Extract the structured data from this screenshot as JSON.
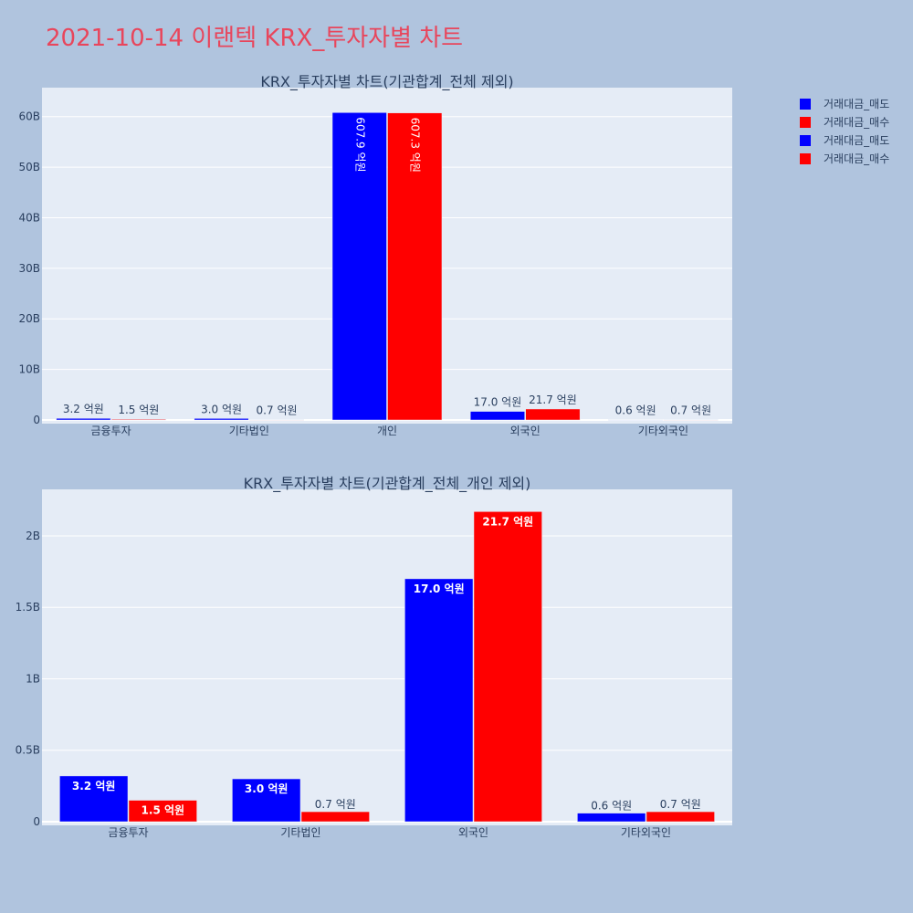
{
  "page": {
    "title": "2021-10-14 이랜텍 KRX_투자자별 차트",
    "background": "#b0c4de",
    "plot_background": "#e5ecf6"
  },
  "legend": {
    "placement": "top-right",
    "entries": [
      {
        "label": "거래대금_매도",
        "color": "#0000ff"
      },
      {
        "label": "거래대금_매수",
        "color": "#ff0000"
      },
      {
        "label": "거래대금_매도",
        "color": "#0000ff"
      },
      {
        "label": "거래대금_매수",
        "color": "#ff0000"
      }
    ]
  },
  "chart_data": [
    {
      "type": "bar",
      "title": "KRX_투자자별 차트(기관합계_전체 제외)",
      "categories": [
        "금융투자",
        "기타법인",
        "개인",
        "외국인",
        "기타외국인"
      ],
      "ylim": [
        0,
        65000000000
      ],
      "yticks": [
        0,
        10000000000,
        20000000000,
        30000000000,
        40000000000,
        50000000000,
        60000000000
      ],
      "ytick_labels": [
        "0",
        "10B",
        "20B",
        "30B",
        "40B",
        "50B",
        "60B"
      ],
      "grid": true,
      "series": [
        {
          "name": "거래대금_매도",
          "color": "#0000ff",
          "values": [
            320000000,
            300000000,
            60790000000,
            1700000000,
            60000000
          ],
          "labels": [
            "3.2 억원",
            "3.0 억원",
            "607.9 억원",
            "17.0 억원",
            "0.6 억원"
          ]
        },
        {
          "name": "거래대금_매수",
          "color": "#ff0000",
          "values": [
            150000000,
            70000000,
            60730000000,
            2170000000,
            70000000
          ],
          "labels": [
            "1.5 억원",
            "0.7 억원",
            "607.3 억원",
            "21.7 억원",
            "0.7 억원"
          ]
        }
      ]
    },
    {
      "type": "bar",
      "title": "KRX_투자자별 차트(기관합계_전체_개인 제외)",
      "categories": [
        "금융투자",
        "기타법인",
        "외국인",
        "기타외국인"
      ],
      "ylim": [
        0,
        2300000000
      ],
      "yticks": [
        0,
        500000000,
        1000000000,
        1500000000,
        2000000000
      ],
      "ytick_labels": [
        "0",
        "0.5B",
        "1B",
        "1.5B",
        "2B"
      ],
      "grid": true,
      "series": [
        {
          "name": "거래대금_매도",
          "color": "#0000ff",
          "values": [
            320000000,
            300000000,
            1700000000,
            60000000
          ],
          "labels": [
            "3.2 억원",
            "3.0 억원",
            "17.0 억원",
            "0.6 억원"
          ]
        },
        {
          "name": "거래대금_매수",
          "color": "#ff0000",
          "values": [
            150000000,
            70000000,
            2170000000,
            70000000
          ],
          "labels": [
            "1.5 억원",
            "0.7 억원",
            "21.7 억원",
            "0.7 억원"
          ]
        }
      ]
    }
  ]
}
